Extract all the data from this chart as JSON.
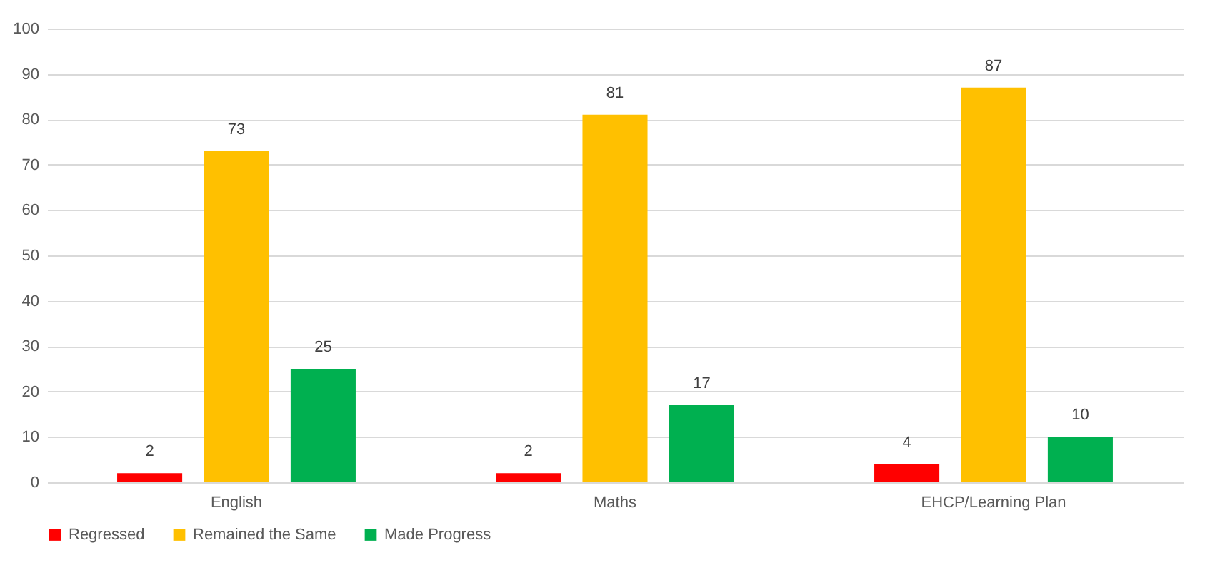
{
  "chart_data": {
    "type": "bar",
    "categories": [
      "English",
      "Maths",
      "EHCP/Learning Plan"
    ],
    "series": [
      {
        "name": "Regressed",
        "color": "#ff0000",
        "values": [
          2,
          2,
          4
        ]
      },
      {
        "name": "Remained the Same",
        "color": "#ffc000",
        "values": [
          73,
          81,
          87
        ]
      },
      {
        "name": "Made Progress",
        "color": "#00b050",
        "values": [
          25,
          17,
          10
        ]
      }
    ],
    "ylim": [
      0,
      100
    ],
    "yticks": [
      0,
      10,
      20,
      30,
      40,
      50,
      60,
      70,
      80,
      90,
      100
    ],
    "grid": "y",
    "legend": "bottom",
    "data_labels": true
  }
}
